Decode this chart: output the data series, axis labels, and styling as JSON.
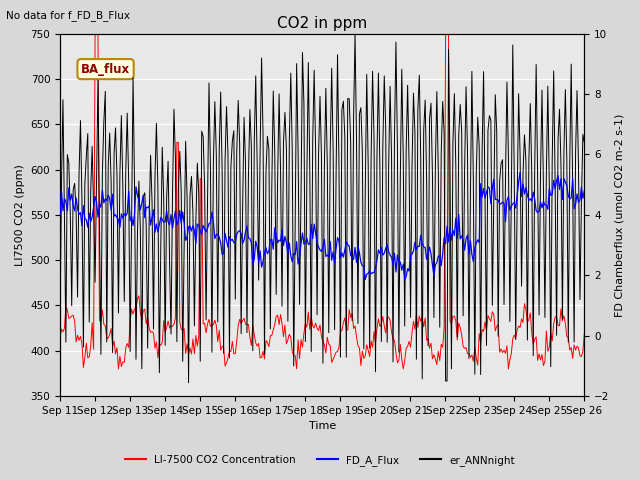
{
  "title": "CO2 in ppm",
  "top_left_text": "No data for f_FD_B_Flux",
  "xlabel": "Time",
  "ylabel_left": "LI7500 CO2 (ppm)",
  "ylabel_right": "FD Chamberflux (umol CO2 m-2 s-1)",
  "ylim_left": [
    350,
    750
  ],
  "ylim_right": [
    -2,
    10
  ],
  "xlim": [
    0,
    360
  ],
  "x_tick_labels": [
    "Sep 11",
    "Sep 12",
    "Sep 13",
    "Sep 14",
    "Sep 15",
    "Sep 16",
    "Sep 17",
    "Sep 18",
    "Sep 19",
    "Sep 20",
    "Sep 21",
    "Sep 22",
    "Sep 23",
    "Sep 24",
    "Sep 25",
    "Sep 26"
  ],
  "x_tick_positions": [
    0,
    24,
    48,
    72,
    96,
    120,
    144,
    168,
    192,
    216,
    240,
    264,
    288,
    312,
    336,
    360
  ],
  "ba_flux_label": "BA_flux",
  "legend_entries": [
    "LI-7500 CO2 Concentration",
    "FD_A_Flux",
    "er_ANNnight"
  ],
  "legend_colors": [
    "#ff0000",
    "#0000ff",
    "#000000"
  ],
  "line_colors": [
    "#ff0000",
    "#0000ff",
    "#000000"
  ],
  "background_color": "#d8d8d8",
  "plot_bg_color": "#e8e8e8",
  "title_fontsize": 11,
  "label_fontsize": 8,
  "tick_fontsize": 7.5
}
